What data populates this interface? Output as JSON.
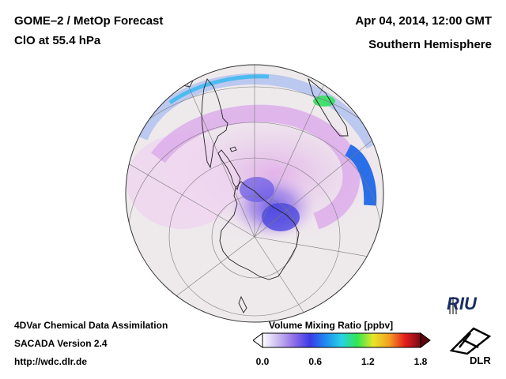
{
  "header": {
    "title_line1": "GOME–2 / MetOp Forecast",
    "title_line2": "ClO at 55.4 hPa",
    "date": "Apr 04, 2014, 12:00 GMT",
    "region": "Southern Hemisphere"
  },
  "footer": {
    "line1": "4DVar Chemical Data Assimilation",
    "line2": "SACADA Version 2.4",
    "url": "http://wdc.dlr.de"
  },
  "colorbar": {
    "title": "Volume Mixing Ratio [ppbv]",
    "ticks": [
      "0.0",
      "0.6",
      "1.2",
      "1.8"
    ],
    "tick_values": [
      0.0,
      0.6,
      1.2,
      1.8
    ],
    "range": [
      0.0,
      1.8
    ],
    "colors": [
      "#ffffff",
      "#c9b8f0",
      "#8f6ee8",
      "#3b3be6",
      "#1e8cf0",
      "#28d2e6",
      "#32e650",
      "#e6e628",
      "#f5a020",
      "#e61e1e",
      "#780a14"
    ]
  },
  "logos": {
    "riu": "RIU",
    "dlr": "DLR"
  }
}
